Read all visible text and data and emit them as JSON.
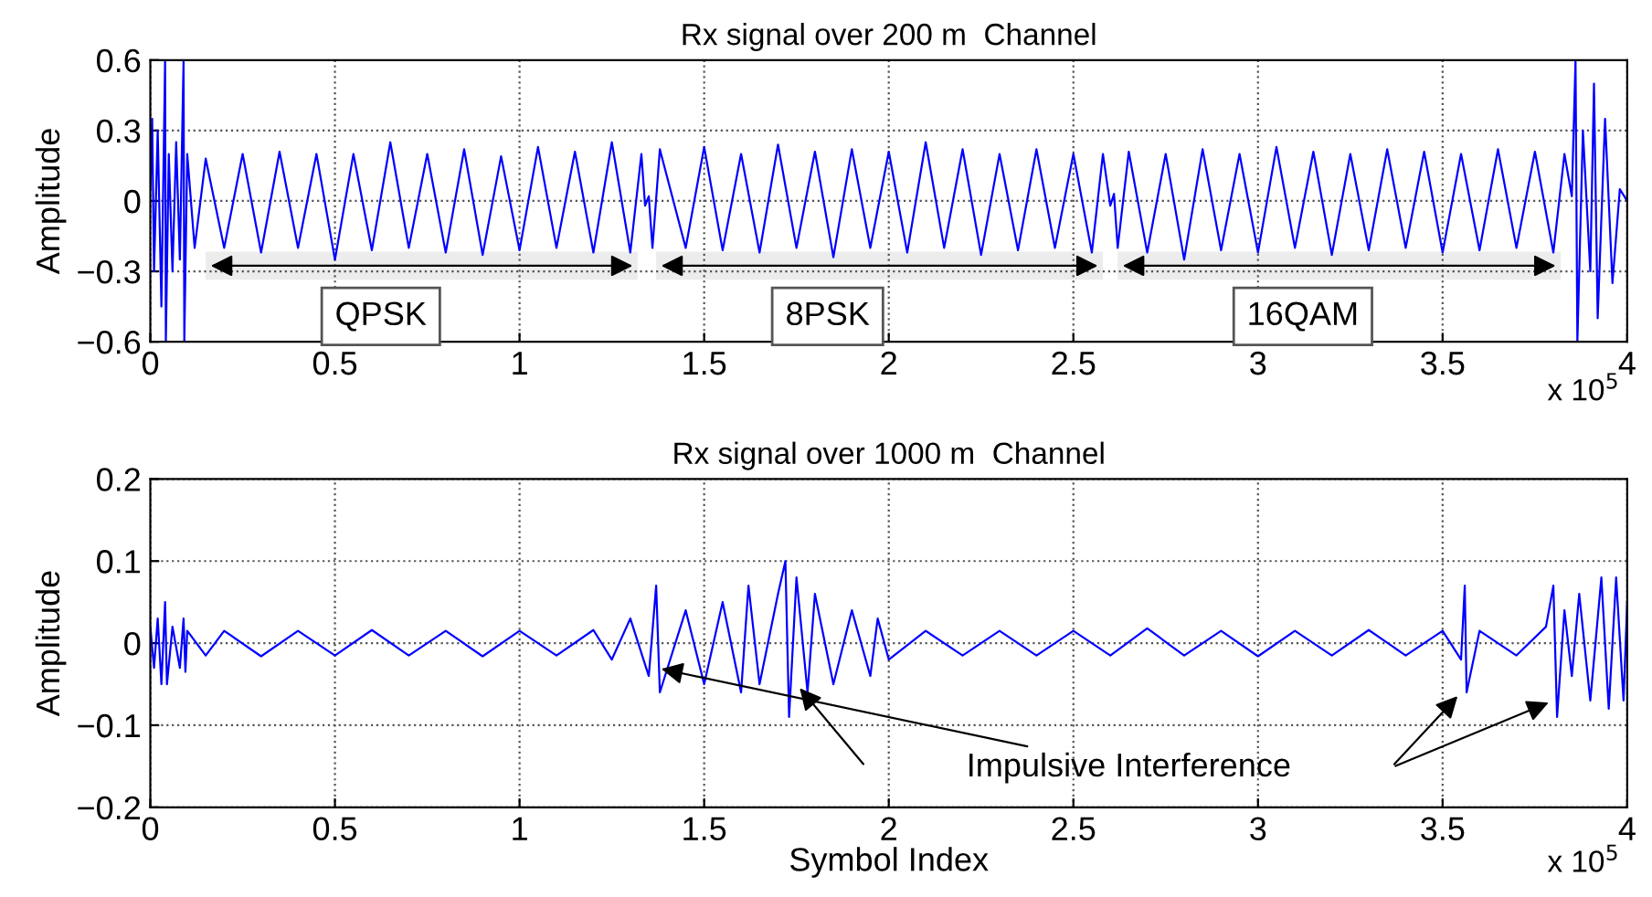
{
  "chart_data": [
    {
      "type": "line",
      "title": "Rx signal over 200 m  Channel",
      "ylabel": "Amplitude",
      "annotations": [
        "x 10$^{5}$"
      ],
      "xlim": [
        0,
        4
      ],
      "xticks": [
        0,
        0.5,
        1,
        1.5,
        2,
        2.5,
        3,
        3.5,
        4
      ],
      "ylim": [
        -0.6,
        0.6
      ],
      "yticks": [
        {
          "value": -0.6,
          "label": "−0.6"
        },
        {
          "value": -0.3,
          "label": "−0.3"
        },
        0,
        0.3,
        0.6
      ],
      "grid": true,
      "bands": [
        {
          "axis": "x",
          "from": 0.15,
          "to": 1.32,
          "label": "QPSK"
        },
        {
          "axis": "x",
          "from": 1.37,
          "to": 2.58,
          "label": "8PSK"
        },
        {
          "axis": "x",
          "from": 2.62,
          "to": 3.82,
          "label": "16QAM"
        }
      ],
      "series": [
        {
          "color": "#0000ff",
          "x": [
            0,
            0.005,
            0.01,
            0.02,
            0.03,
            0.04,
            0.042,
            0.05,
            0.06,
            0.07,
            0.08,
            0.09,
            0.092,
            0.1,
            0.12,
            0.15,
            0.2,
            0.25,
            0.3,
            0.35,
            0.4,
            0.45,
            0.5,
            0.55,
            0.6,
            0.65,
            0.7,
            0.75,
            0.8,
            0.85,
            0.9,
            0.95,
            1.0,
            1.05,
            1.1,
            1.15,
            1.2,
            1.25,
            1.3,
            1.33,
            1.34,
            1.35,
            1.36,
            1.38,
            1.45,
            1.5,
            1.55,
            1.6,
            1.65,
            1.7,
            1.75,
            1.8,
            1.85,
            1.9,
            1.95,
            2.0,
            2.05,
            2.1,
            2.15,
            2.2,
            2.25,
            2.3,
            2.35,
            2.4,
            2.45,
            2.5,
            2.55,
            2.58,
            2.6,
            2.61,
            2.62,
            2.65,
            2.7,
            2.75,
            2.8,
            2.85,
            2.9,
            2.95,
            3.0,
            3.05,
            3.1,
            3.15,
            3.2,
            3.25,
            3.3,
            3.35,
            3.4,
            3.45,
            3.5,
            3.55,
            3.6,
            3.65,
            3.7,
            3.75,
            3.8,
            3.83,
            3.85,
            3.86,
            3.865,
            3.88,
            3.9,
            3.91,
            3.92,
            3.94,
            3.96,
            3.98,
            4.0
          ],
          "values": [
            0.05,
            0.35,
            -0.3,
            0.3,
            -0.45,
            0.6,
            -0.6,
            0.2,
            -0.3,
            0.25,
            -0.25,
            0.6,
            -0.6,
            0.2,
            -0.2,
            0.18,
            -0.2,
            0.2,
            -0.22,
            0.21,
            -0.2,
            0.2,
            -0.25,
            0.2,
            -0.21,
            0.25,
            -0.2,
            0.2,
            -0.22,
            0.22,
            -0.23,
            0.19,
            -0.21,
            0.23,
            -0.2,
            0.21,
            -0.22,
            0.25,
            -0.22,
            0.2,
            -0.02,
            0.02,
            -0.2,
            0.22,
            -0.2,
            0.23,
            -0.21,
            0.2,
            -0.22,
            0.24,
            -0.2,
            0.21,
            -0.24,
            0.22,
            -0.2,
            0.21,
            -0.22,
            0.25,
            -0.2,
            0.22,
            -0.23,
            0.2,
            -0.21,
            0.22,
            -0.2,
            0.2,
            -0.22,
            0.2,
            -0.02,
            0.03,
            -0.2,
            0.21,
            -0.22,
            0.2,
            -0.25,
            0.22,
            -0.21,
            0.2,
            -0.22,
            0.23,
            -0.2,
            0.21,
            -0.23,
            0.2,
            -0.21,
            0.22,
            -0.2,
            0.21,
            -0.22,
            0.2,
            -0.21,
            0.22,
            -0.2,
            0.21,
            -0.22,
            0.2,
            0.02,
            0.6,
            -0.6,
            0.3,
            -0.3,
            0.5,
            -0.5,
            0.35,
            -0.35,
            0.05,
            0.0
          ]
        }
      ]
    },
    {
      "type": "line",
      "title": "Rx signal over 1000 m  Channel",
      "xlabel": "Symbol Index",
      "ylabel": "Amplitude",
      "annotations": [
        "x 10$^{5}$",
        {
          "text": "Impulsive Interference",
          "x": 1.37,
          "y": -0.03
        }
      ],
      "xlim": [
        0,
        4
      ],
      "xticks": [
        0,
        0.5,
        1,
        1.5,
        2,
        2.5,
        3,
        3.5,
        4
      ],
      "ylim": [
        -0.2,
        0.2
      ],
      "yticks": [
        {
          "value": -0.2,
          "label": "−0.2"
        },
        {
          "value": -0.1,
          "label": "−0.1"
        },
        0,
        0.1,
        0.2
      ],
      "grid": true,
      "series": [
        {
          "color": "#0000ff",
          "x": [
            0,
            0.01,
            0.02,
            0.03,
            0.04,
            0.045,
            0.06,
            0.08,
            0.09,
            0.095,
            0.1,
            0.15,
            0.2,
            0.3,
            0.4,
            0.5,
            0.6,
            0.7,
            0.8,
            0.9,
            1.0,
            1.1,
            1.2,
            1.25,
            1.3,
            1.35,
            1.37,
            1.38,
            1.45,
            1.5,
            1.55,
            1.6,
            1.62,
            1.65,
            1.7,
            1.72,
            1.73,
            1.75,
            1.78,
            1.8,
            1.85,
            1.9,
            1.95,
            1.97,
            2.0,
            2.1,
            2.2,
            2.3,
            2.4,
            2.5,
            2.6,
            2.7,
            2.8,
            2.9,
            3.0,
            3.1,
            3.2,
            3.3,
            3.4,
            3.5,
            3.55,
            3.56,
            3.565,
            3.6,
            3.7,
            3.78,
            3.8,
            3.81,
            3.83,
            3.85,
            3.87,
            3.9,
            3.93,
            3.95,
            3.97,
            3.99,
            4.0
          ],
          "values": [
            0.02,
            -0.03,
            0.03,
            -0.05,
            0.05,
            -0.05,
            0.02,
            -0.03,
            0.03,
            -0.035,
            0.015,
            -0.015,
            0.015,
            -0.016,
            0.015,
            -0.015,
            0.016,
            -0.015,
            0.015,
            -0.016,
            0.015,
            -0.015,
            0.016,
            -0.02,
            0.03,
            -0.04,
            0.07,
            -0.06,
            0.04,
            -0.05,
            0.05,
            -0.06,
            0.07,
            -0.05,
            0.06,
            0.1,
            -0.09,
            0.08,
            -0.06,
            0.06,
            -0.05,
            0.04,
            -0.04,
            0.03,
            -0.02,
            0.015,
            -0.015,
            0.015,
            -0.015,
            0.015,
            -0.015,
            0.018,
            -0.015,
            0.015,
            -0.016,
            0.015,
            -0.015,
            0.016,
            -0.015,
            0.015,
            -0.02,
            0.07,
            -0.06,
            0.015,
            -0.015,
            0.02,
            0.07,
            -0.09,
            0.04,
            -0.04,
            0.06,
            -0.07,
            0.08,
            -0.08,
            0.08,
            -0.07,
            0.05
          ]
        }
      ]
    }
  ]
}
